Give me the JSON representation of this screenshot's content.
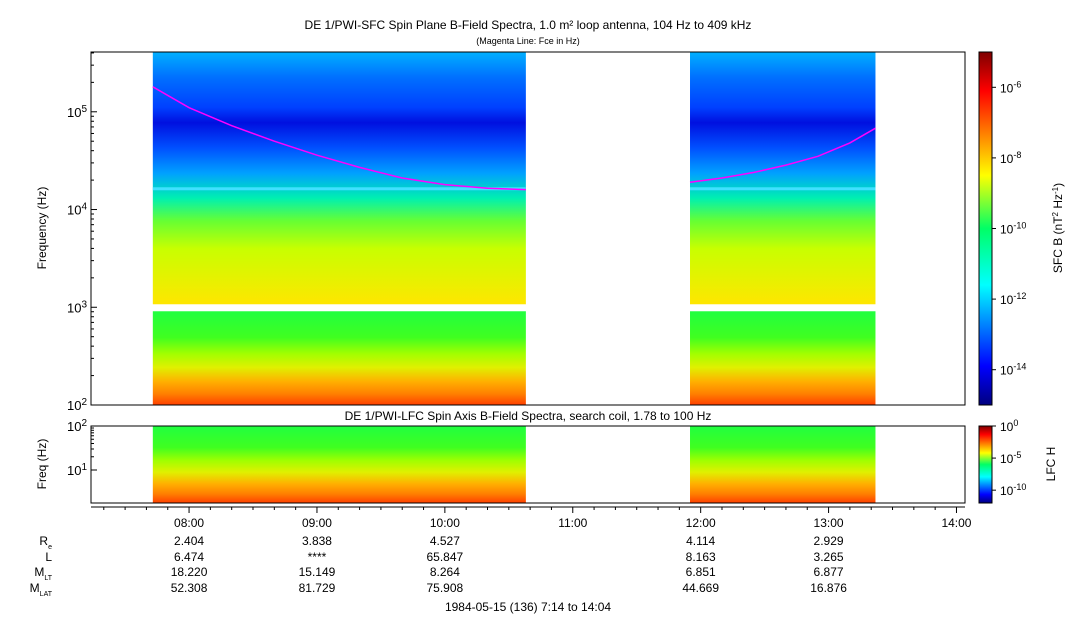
{
  "chart_data": [
    {
      "type": "heatmap",
      "title": "DE 1/PWI-SFC  Spin Plane B-Field Spectra, 1.0 m² loop antenna, 104 Hz to 409 kHz",
      "subtitle": "(Magenta Line: Fce in Hz)",
      "ylabel": "Frequency (Hz)",
      "ylim": [
        100,
        409000
      ],
      "yscale": "log",
      "ytick_labels": [
        {
          "base": "10",
          "exp": "2"
        },
        {
          "base": "10",
          "exp": "3"
        },
        {
          "base": "10",
          "exp": "4"
        },
        {
          "base": "10",
          "exp": "5"
        }
      ],
      "colorbar": {
        "label_parts": [
          "SFC B (nT",
          "2",
          " Hz",
          "-1",
          ")"
        ],
        "range_log10": [
          -15,
          -5
        ],
        "tick_labels": [
          {
            "base": "10",
            "exp": "-6"
          },
          {
            "base": "10",
            "exp": "-8"
          },
          {
            "base": "10",
            "exp": "-10"
          },
          {
            "base": "10",
            "exp": "-12"
          },
          {
            "base": "10",
            "exp": "-14"
          }
        ]
      },
      "data_intervals": [
        [
          "07:43",
          "10:38"
        ],
        [
          "11:55",
          "13:22"
        ]
      ],
      "fce_line": {
        "color": "#ff00ff",
        "segments": [
          {
            "time": [
              "07:43",
              "08:00",
              "08:20",
              "08:40",
              "09:00",
              "09:20",
              "09:40",
              "10:00",
              "10:20",
              "10:38"
            ],
            "freq_hz": [
              180000,
              110000,
              72000,
              50000,
              36000,
              27000,
              21000,
              18000,
              16500,
              16000
            ]
          },
          {
            "time": [
              "11:55",
              "12:10",
              "12:25",
              "12:40",
              "12:55",
              "13:10",
              "13:22"
            ],
            "freq_hz": [
              19000,
              21000,
              24000,
              28500,
              35000,
              48000,
              68000
            ]
          }
        ]
      }
    },
    {
      "type": "heatmap",
      "title": "DE 1/PWI-LFC  Spin Axis B-Field Spectra, search coil, 1.78 to 100 Hz",
      "ylabel": "Freq (Hz)",
      "ylim": [
        1.78,
        100
      ],
      "yscale": "log",
      "ytick_labels": [
        {
          "base": "10",
          "exp": "1"
        },
        {
          "base": "10",
          "exp": "2"
        }
      ],
      "colorbar": {
        "label": "LFC H",
        "range_log10": [
          -12,
          0
        ],
        "tick_labels": [
          {
            "base": "10",
            "exp": "0"
          },
          {
            "base": "10",
            "exp": "-5"
          },
          {
            "base": "10",
            "exp": "-10"
          }
        ]
      },
      "data_intervals": [
        [
          "07:43",
          "10:38"
        ],
        [
          "11:55",
          "13:22"
        ]
      ]
    }
  ],
  "time_axis": {
    "range": [
      "07:14",
      "14:04"
    ],
    "ticks": [
      "08:00",
      "09:00",
      "10:00",
      "11:00",
      "12:00",
      "13:00",
      "14:00"
    ]
  },
  "ephemeris": {
    "row_labels": [
      {
        "main": "R",
        "sub": "e"
      },
      {
        "main": "L",
        "sub": ""
      },
      {
        "main": "M",
        "sub": "LT"
      },
      {
        "main": "M",
        "sub": "LAT"
      }
    ],
    "rows": [
      [
        "2.404",
        "3.838",
        "4.527",
        "",
        "4.114",
        "2.929",
        ""
      ],
      [
        "6.474",
        "****",
        "65.847",
        "",
        "8.163",
        "3.265",
        ""
      ],
      [
        "18.220",
        "15.149",
        "8.264",
        "",
        "6.851",
        "6.877",
        ""
      ],
      [
        "52.308",
        "81.729",
        "75.908",
        "",
        "44.669",
        "16.876",
        ""
      ]
    ]
  },
  "footer": "1984-05-15 (136) 7:14 to 14:04"
}
